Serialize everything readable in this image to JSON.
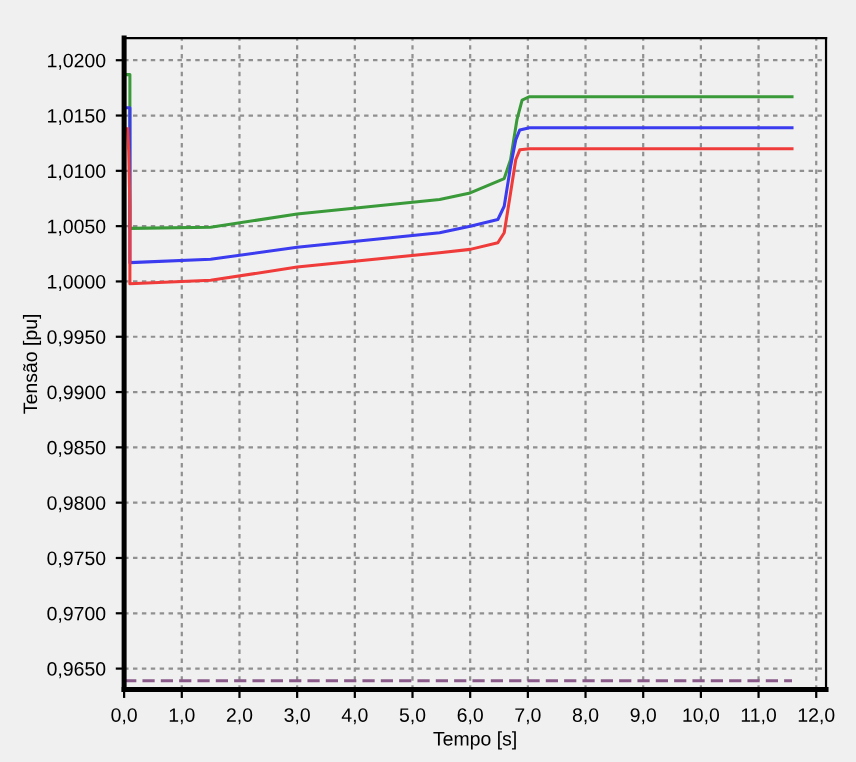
{
  "chart_data": {
    "type": "line",
    "xlabel": "Tempo [s]",
    "ylabel": "Tensão [pu]",
    "xlim": [
      0,
      12.17
    ],
    "ylim": [
      0.9631,
      1.022
    ],
    "xticks": [
      {
        "value": 0,
        "label": "0,0"
      },
      {
        "value": 1,
        "label": "1,0"
      },
      {
        "value": 2,
        "label": "2,0"
      },
      {
        "value": 3,
        "label": "3,0"
      },
      {
        "value": 4,
        "label": "4,0"
      },
      {
        "value": 5,
        "label": "5,0"
      },
      {
        "value": 6,
        "label": "6,0"
      },
      {
        "value": 7,
        "label": "7,0"
      },
      {
        "value": 8,
        "label": "8,0"
      },
      {
        "value": 9,
        "label": "9,0"
      },
      {
        "value": 10,
        "label": "10,0"
      },
      {
        "value": 11,
        "label": "11,0"
      },
      {
        "value": 12,
        "label": "12,0"
      }
    ],
    "yticks": [
      {
        "value": 0.965,
        "label": "0,9650"
      },
      {
        "value": 0.97,
        "label": "0,9700"
      },
      {
        "value": 0.975,
        "label": "0,9750"
      },
      {
        "value": 0.98,
        "label": "0,9800"
      },
      {
        "value": 0.985,
        "label": "0,9850"
      },
      {
        "value": 0.99,
        "label": "0,9900"
      },
      {
        "value": 0.995,
        "label": "0,9950"
      },
      {
        "value": 1.0,
        "label": "1,0000"
      },
      {
        "value": 1.005,
        "label": "1,0050"
      },
      {
        "value": 1.01,
        "label": "1,0100"
      },
      {
        "value": 1.015,
        "label": "1,0150"
      },
      {
        "value": 1.02,
        "label": "1,0200"
      }
    ],
    "grid": true,
    "series": [
      {
        "color": "#3a9a3a",
        "x": [
          0,
          0.1,
          0.1,
          1.5,
          3.0,
          5.47,
          6.0,
          6.59,
          6.7,
          6.81,
          6.9,
          7.03,
          11.58
        ],
        "values": [
          1.0187,
          1.0187,
          1.0048,
          1.0049,
          1.0061,
          1.0074,
          1.008,
          1.0093,
          1.011,
          1.0146,
          1.0164,
          1.0167,
          1.0167
        ]
      },
      {
        "color": "#3b3bf0",
        "x": [
          0,
          0.1,
          0.1,
          1.5,
          3.0,
          5.47,
          6.0,
          6.48,
          6.59,
          6.7,
          6.79,
          6.86,
          7.03,
          11.58
        ],
        "values": [
          1.0157,
          1.0157,
          1.0017,
          1.002,
          1.0031,
          1.0044,
          1.005,
          1.0056,
          1.0068,
          1.0104,
          1.0128,
          1.0137,
          1.0139,
          1.0139
        ]
      },
      {
        "color": "#f03b3b",
        "x": [
          0.06,
          0.08,
          0.1,
          0.1,
          1.5,
          3.0,
          5.47,
          6.0,
          6.48,
          6.59,
          6.7,
          6.79,
          6.86,
          7.03,
          11.58
        ],
        "values": [
          1.0138,
          1.0117,
          1.0068,
          0.9998,
          1.0001,
          1.0013,
          1.0026,
          1.0029,
          1.0035,
          1.0044,
          1.008,
          1.011,
          1.0119,
          1.012,
          1.012
        ]
      },
      {
        "color": "#8a5a8a",
        "line_style": "dashed",
        "x": [
          0,
          11.58
        ],
        "values": [
          0.9639,
          0.9639
        ]
      }
    ]
  }
}
